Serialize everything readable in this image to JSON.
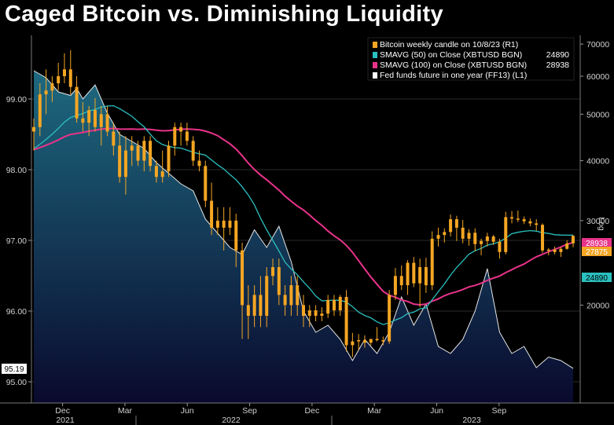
{
  "title": "Caged Bitcoin vs. Diminishing Liquidity",
  "colors": {
    "candle": "#f5a623",
    "sma50": "#2bbfbf",
    "sma100": "#e8338a",
    "fed": "#e6e6e6",
    "fill_top": "#1f6f86",
    "fill_bottom": "#0a0a30"
  },
  "chart_data": {
    "type": "line",
    "legend": {
      "placement": "top-right",
      "entries": [
        {
          "label": "Bitcoin weekly candle on 10/8/23 (R1)",
          "value": "",
          "color": "#f5a623"
        },
        {
          "label": "SMAVG (50)  on Close (XBTUSD BGN)",
          "value": "24890",
          "color": "#2bbfbf"
        },
        {
          "label": "SMAVG (100)  on Close (XBTUSD BGN)",
          "value": "28938",
          "color": "#e8338a"
        },
        {
          "label": "Fed funds future in one year (FF13) (L1)",
          "value": "",
          "color": "#ffffff"
        }
      ]
    },
    "x_axis": {
      "months": [
        "Dec",
        "Mar",
        "Jun",
        "Sep",
        "Dec",
        "Mar",
        "Jun",
        "Sep"
      ],
      "years": [
        "2021",
        "2022",
        "2023"
      ]
    },
    "left_axis": {
      "ticks": [
        "99.00",
        "98.00",
        "97.00",
        "96.00",
        "95.00"
      ],
      "ylim": [
        94.7,
        99.9
      ],
      "last_value_tag": "95.19"
    },
    "right_axis": {
      "title": "Log",
      "scale": "log",
      "ticks": [
        "70000",
        "60000",
        "50000",
        "40000",
        "30000",
        "20000"
      ],
      "ylim": [
        12500,
        73000
      ],
      "last_value_tags": [
        "28938",
        "27875",
        "24890"
      ]
    },
    "btc_candles_approx": [
      [
        0,
        46000,
        49000,
        42000,
        47000
      ],
      [
        1,
        47000,
        58000,
        45000,
        55000
      ],
      [
        2,
        55000,
        62000,
        50000,
        56000
      ],
      [
        3,
        56000,
        60000,
        53000,
        58000
      ],
      [
        4,
        58000,
        64000,
        56000,
        60000
      ],
      [
        5,
        60000,
        67000,
        58000,
        62000
      ],
      [
        6,
        62000,
        68000,
        55000,
        57000
      ],
      [
        7,
        57000,
        60000,
        48000,
        49000
      ],
      [
        8,
        49000,
        53000,
        46000,
        48000
      ],
      [
        9,
        48000,
        52000,
        45000,
        51000
      ],
      [
        10,
        51000,
        54000,
        46000,
        47000
      ],
      [
        11,
        47000,
        52000,
        43000,
        50000
      ],
      [
        12,
        50000,
        52000,
        45000,
        46000
      ],
      [
        13,
        46000,
        48000,
        41000,
        43000
      ],
      [
        14,
        43000,
        46000,
        36000,
        37000
      ],
      [
        15,
        37000,
        45000,
        34000,
        42000
      ],
      [
        16,
        42000,
        45000,
        39000,
        43000
      ],
      [
        17,
        43000,
        44000,
        39000,
        40000
      ],
      [
        18,
        40000,
        45000,
        38000,
        44000
      ],
      [
        19,
        44000,
        45000,
        38000,
        39000
      ],
      [
        20,
        39000,
        40000,
        36000,
        37000
      ],
      [
        21,
        37000,
        42000,
        36000,
        38000
      ],
      [
        22,
        38000,
        44000,
        37000,
        43000
      ],
      [
        23,
        43000,
        48000,
        41000,
        47000
      ],
      [
        24,
        47000,
        48000,
        43000,
        46000
      ],
      [
        25,
        46000,
        48000,
        43000,
        44000
      ],
      [
        26,
        44000,
        45000,
        39000,
        40000
      ],
      [
        27,
        40000,
        42000,
        38000,
        39000
      ],
      [
        28,
        39000,
        40000,
        32000,
        33000
      ],
      [
        29,
        33000,
        36000,
        28000,
        29000
      ],
      [
        30,
        29000,
        32000,
        28000,
        30000
      ],
      [
        31,
        30000,
        32000,
        26000,
        29000
      ],
      [
        32,
        29000,
        32000,
        28000,
        30000
      ],
      [
        33,
        30000,
        31000,
        24000,
        26000
      ],
      [
        34,
        26000,
        27000,
        17000,
        20000
      ],
      [
        35,
        20000,
        22000,
        17000,
        19000
      ],
      [
        36,
        19000,
        22000,
        18000,
        21000
      ],
      [
        37,
        21000,
        23000,
        18000,
        19000
      ],
      [
        38,
        19000,
        24000,
        18000,
        23000
      ],
      [
        39,
        23000,
        25000,
        22000,
        24000
      ],
      [
        40,
        24000,
        25000,
        20000,
        21000
      ],
      [
        41,
        21000,
        22000,
        19000,
        20000
      ],
      [
        42,
        20000,
        23000,
        19000,
        22000
      ],
      [
        43,
        22000,
        23000,
        19000,
        20000
      ],
      [
        44,
        20000,
        21000,
        18000,
        19000
      ],
      [
        45,
        19000,
        20000,
        18000,
        19500
      ],
      [
        46,
        19500,
        20000,
        18500,
        19000
      ],
      [
        47,
        19000,
        19800,
        18500,
        19200
      ],
      [
        48,
        19200,
        21000,
        18800,
        20500
      ],
      [
        49,
        20500,
        21000,
        19000,
        19500
      ],
      [
        50,
        19500,
        21000,
        19000,
        20800
      ],
      [
        51,
        20800,
        21500,
        16000,
        16500
      ],
      [
        52,
        16500,
        17500,
        15600,
        16800
      ],
      [
        53,
        16800,
        17400,
        16100,
        16900
      ],
      [
        54,
        16900,
        17300,
        16300,
        16700
      ],
      [
        55,
        16700,
        17000,
        16500,
        17000
      ],
      [
        56,
        17000,
        18000,
        16800,
        16900
      ],
      [
        57,
        16900,
        17200,
        16500,
        16800
      ],
      [
        58,
        16800,
        21500,
        16600,
        21000
      ],
      [
        59,
        21000,
        23900,
        20500,
        23000
      ],
      [
        60,
        23000,
        24200,
        21500,
        22000
      ],
      [
        61,
        22000,
        24800,
        21000,
        24500
      ],
      [
        62,
        24500,
        25200,
        21800,
        22200
      ],
      [
        63,
        22200,
        25000,
        19800,
        24000
      ],
      [
        64,
        24000,
        25100,
        21200,
        22000
      ],
      [
        65,
        22000,
        28500,
        21500,
        27500
      ],
      [
        66,
        27500,
        29000,
        26500,
        28000
      ],
      [
        67,
        28000,
        28900,
        27000,
        28400
      ],
      [
        68,
        28400,
        30900,
        27800,
        30200
      ],
      [
        69,
        30200,
        30700,
        27200,
        29000
      ],
      [
        70,
        29000,
        30100,
        26900,
        27500
      ],
      [
        71,
        27500,
        28800,
        26600,
        28300
      ],
      [
        72,
        28300,
        28900,
        25900,
        26800
      ],
      [
        73,
        26800,
        27500,
        25400,
        27200
      ],
      [
        74,
        27200,
        28300,
        26500,
        27800
      ],
      [
        75,
        27800,
        28000,
        26700,
        27100
      ],
      [
        76,
        27100,
        27500,
        25000,
        25800
      ],
      [
        77,
        25800,
        31300,
        25500,
        30500
      ],
      [
        78,
        30500,
        31400,
        29600,
        30300
      ],
      [
        79,
        30300,
        31500,
        29800,
        30200
      ],
      [
        80,
        30200,
        30600,
        29500,
        29900
      ],
      [
        81,
        29900,
        30300,
        29200,
        29600
      ],
      [
        82,
        29600,
        30200,
        28600,
        29400
      ],
      [
        83,
        29400,
        29600,
        25700,
        26000
      ],
      [
        84,
        26000,
        26300,
        25400,
        26100
      ],
      [
        85,
        26100,
        26500,
        25500,
        25800
      ],
      [
        86,
        25800,
        26400,
        25200,
        26200
      ],
      [
        87,
        26200,
        27300,
        26100,
        26900
      ],
      [
        88,
        26900,
        28000,
        26400,
        27875
      ]
    ]
  }
}
